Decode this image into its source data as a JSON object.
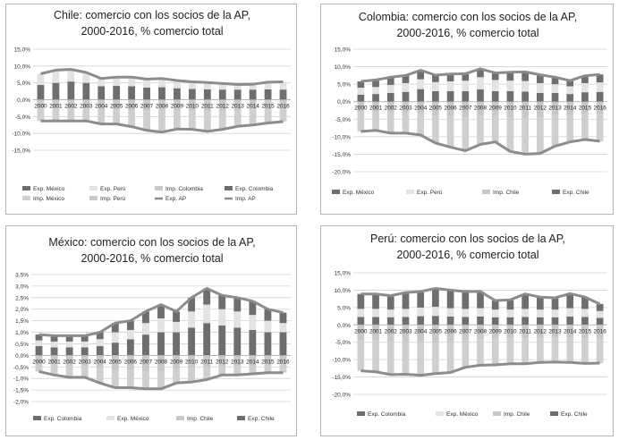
{
  "colors": {
    "exp_dark": "#6e6e6e",
    "exp_light": "#e3e3e3",
    "imp_mid": "#c8c8c8",
    "imp_light": "#cfcfcf",
    "line": "#8c8c8c",
    "grid": "#d2d2d2"
  },
  "chart_data": [
    {
      "type": "bar",
      "title": "Chile: comercio con los socios de la AP, 2000-2016, % comercio total",
      "categories": [
        "2000",
        "2001",
        "2002",
        "2003",
        "2004",
        "2005",
        "2006",
        "2007",
        "2008",
        "2009",
        "2010",
        "2011",
        "2012",
        "2013",
        "2014",
        "2015",
        "2016"
      ],
      "y_ticks": [
        "15,0%",
        "10,0%",
        "5,0%",
        "0,0%",
        "-5,0%",
        "-10,0%",
        "-15,0%"
      ],
      "ylim": [
        -15,
        15
      ],
      "legend": [
        "Exp. México",
        "Exp. Perú",
        "Imp. Colombia",
        "Exp. Colombia",
        "Imp. México",
        "Imp. Perú",
        "Exp. AP",
        "Imp. AP"
      ],
      "legend_placement": "bottom",
      "series_pos": [
        {
          "values": [
            4.4,
            5.0,
            5.4,
            5.0,
            4.0,
            4.1,
            4.0,
            3.6,
            3.7,
            3.4,
            3.2,
            3.1,
            3.0,
            3.0,
            3.0,
            3.1,
            3.0
          ]
        },
        {
          "values": [
            3.3,
            3.8,
            3.6,
            3.1,
            2.3,
            2.6,
            2.7,
            2.5,
            2.6,
            2.3,
            2.1,
            2.0,
            1.8,
            1.5,
            1.6,
            2.1,
            2.3
          ]
        }
      ],
      "series_neg": [
        {
          "values": [
            -2.4,
            -2.6,
            -2.5,
            -2.6,
            -2.9,
            -3.0,
            -3.2,
            -3.4,
            -3.5,
            -3.3,
            -3.4,
            -3.5,
            -3.3,
            -3.2,
            -3.0,
            -2.9,
            -2.8
          ]
        },
        {
          "values": [
            -3.9,
            -3.7,
            -3.8,
            -3.7,
            -4.3,
            -4.2,
            -4.8,
            -5.7,
            -6.1,
            -5.4,
            -5.4,
            -5.9,
            -5.5,
            -4.7,
            -4.5,
            -4.0,
            -3.7
          ]
        }
      ],
      "line_pos": [
        7.7,
        8.8,
        9.0,
        8.1,
        6.3,
        6.7,
        6.7,
        6.1,
        6.3,
        5.7,
        5.3,
        5.1,
        4.8,
        4.5,
        4.6,
        5.2,
        5.3
      ],
      "line_neg": [
        -6.3,
        -6.3,
        -6.3,
        -6.3,
        -7.2,
        -7.2,
        -8.0,
        -9.1,
        -9.6,
        -8.7,
        -8.8,
        -9.4,
        -8.8,
        -7.9,
        -7.5,
        -6.9,
        -6.5
      ]
    },
    {
      "type": "bar",
      "title": "Colombia: comercio con los socios de la AP, 2000-2016, % comercio total",
      "categories": [
        "2000",
        "2001",
        "2002",
        "2003",
        "2004",
        "2005",
        "2006",
        "2007",
        "2008",
        "2009",
        "2010",
        "2011",
        "2012",
        "2013",
        "2014",
        "2015",
        "2016"
      ],
      "y_ticks": [
        "15,0%",
        "10,0%",
        "5,0%",
        "0,0%",
        "-5,0%",
        "-10,0%",
        "-15,0%",
        "-20,0%"
      ],
      "ylim": [
        -20,
        15
      ],
      "legend": [
        "Exp. México",
        "Exp. Perú",
        "Imp. Chile",
        "Exp. Chile"
      ],
      "legend_placement": "bottom",
      "series_pos": [
        {
          "values": [
            2.0,
            2.2,
            2.5,
            2.8,
            3.6,
            3.0,
            3.0,
            3.0,
            3.5,
            3.0,
            3.0,
            2.9,
            2.5,
            2.5,
            2.2,
            2.7,
            2.8
          ]
        },
        {
          "values": [
            2.0,
            2.0,
            2.3,
            2.5,
            2.8,
            2.6,
            2.8,
            3.0,
            3.5,
            3.2,
            3.0,
            3.0,
            2.8,
            2.5,
            2.2,
            2.6,
            2.7
          ]
        },
        {
          "values": [
            1.8,
            2.0,
            2.2,
            2.2,
            2.6,
            2.0,
            2.1,
            2.0,
            2.4,
            2.0,
            2.4,
            2.6,
            2.4,
            2.0,
            1.6,
            2.1,
            2.3
          ]
        }
      ],
      "series_neg": [
        {
          "values": [
            -3.0,
            -3.0,
            -3.3,
            -3.3,
            -3.5,
            -4.0,
            -4.2,
            -4.5,
            -4.2,
            -4.0,
            -4.5,
            -4.8,
            -4.5,
            -4.0,
            -3.8,
            -3.6,
            -3.7
          ]
        },
        {
          "values": [
            -5.5,
            -5.2,
            -5.7,
            -5.7,
            -6.0,
            -7.8,
            -8.8,
            -9.5,
            -8.0,
            -7.5,
            -9.7,
            -10.2,
            -10.3,
            -8.7,
            -7.7,
            -7.2,
            -7.6
          ]
        }
      ],
      "line_pos": [
        5.8,
        6.2,
        7.0,
        7.5,
        9.0,
        7.6,
        7.9,
        8.0,
        9.4,
        8.2,
        8.4,
        8.5,
        7.7,
        7.0,
        6.0,
        7.4,
        7.8
      ],
      "line_neg": [
        -8.5,
        -8.2,
        -9.0,
        -9.0,
        -9.5,
        -11.8,
        -13.0,
        -14.0,
        -12.2,
        -11.5,
        -14.2,
        -15.0,
        -14.8,
        -12.7,
        -11.5,
        -10.8,
        -11.3
      ]
    },
    {
      "type": "bar",
      "title": "México: comercio con los socios de la AP, 2000-2016, % comercio total",
      "categories": [
        "2000",
        "2001",
        "2002",
        "2003",
        "2004",
        "2005",
        "2006",
        "2007",
        "2008",
        "2009",
        "2010",
        "2011",
        "2012",
        "2013",
        "2014",
        "2015",
        "2016"
      ],
      "y_ticks": [
        "3,5%",
        "3,0%",
        "2,5%",
        "2,0%",
        "1,5%",
        "1,0%",
        "0,5%",
        "0,0%",
        "-0,5%",
        "-1,0%",
        "-1,5%",
        "-2,0%"
      ],
      "ylim": [
        -2,
        3.5
      ],
      "legend": [
        "Exp. Colombia",
        "Exp. México",
        "Imp. Chile",
        "Exp. Chile"
      ],
      "legend_placement": "bottom",
      "series_pos": [
        {
          "values": [
            0.4,
            0.35,
            0.35,
            0.35,
            0.4,
            0.55,
            0.7,
            0.9,
            1.0,
            1.0,
            1.2,
            1.4,
            1.3,
            1.2,
            1.1,
            1.0,
            1.0
          ]
        },
        {
          "values": [
            0.25,
            0.25,
            0.25,
            0.25,
            0.3,
            0.45,
            0.4,
            0.5,
            0.6,
            0.45,
            0.7,
            0.8,
            0.7,
            0.7,
            0.65,
            0.5,
            0.4
          ]
        },
        {
          "values": [
            0.25,
            0.25,
            0.25,
            0.25,
            0.3,
            0.4,
            0.4,
            0.5,
            0.6,
            0.45,
            0.6,
            0.7,
            0.6,
            0.6,
            0.6,
            0.5,
            0.45
          ]
        }
      ],
      "series_neg": [
        {
          "values": [
            -0.35,
            -0.4,
            -0.45,
            -0.45,
            -0.55,
            -0.65,
            -0.65,
            -0.7,
            -0.7,
            -0.6,
            -0.55,
            -0.55,
            -0.45,
            -0.45,
            -0.45,
            -0.4,
            -0.4
          ]
        },
        {
          "values": [
            -0.35,
            -0.45,
            -0.5,
            -0.5,
            -0.65,
            -0.75,
            -0.75,
            -0.75,
            -0.75,
            -0.6,
            -0.6,
            -0.5,
            -0.4,
            -0.4,
            -0.35,
            -0.35,
            -0.35
          ]
        }
      ],
      "line_pos": [
        0.9,
        0.85,
        0.85,
        0.85,
        1.0,
        1.4,
        1.5,
        1.9,
        2.2,
        1.9,
        2.5,
        2.9,
        2.6,
        2.5,
        2.35,
        2.0,
        1.85
      ],
      "line_neg": [
        -0.7,
        -0.85,
        -0.95,
        -0.95,
        -1.2,
        -1.4,
        -1.4,
        -1.45,
        -1.45,
        -1.2,
        -1.15,
        -1.05,
        -0.85,
        -0.85,
        -0.8,
        -0.75,
        -0.75
      ]
    },
    {
      "type": "bar",
      "title": "Perú: comercio con los socios de la AP, 2000-2016, % comercio total",
      "categories": [
        "2000",
        "2001",
        "2002",
        "2003",
        "2004",
        "2005",
        "2006",
        "2007",
        "2008",
        "2009",
        "2010",
        "2011",
        "2012",
        "2013",
        "2014",
        "2015",
        "2016"
      ],
      "y_ticks": [
        "15,0%",
        "10,0%",
        "5,0%",
        "0,0%",
        "-5,0%",
        "-10,0%",
        "-15,0%",
        "-20,0%"
      ],
      "ylim": [
        -20,
        15
      ],
      "legend": [
        "Exp. Colombia",
        "Exp. México",
        "Imp. Chile",
        "Exp. Chile"
      ],
      "legend_placement": "bottom",
      "series_pos": [
        {
          "values": [
            2.3,
            2.3,
            2.2,
            2.3,
            2.5,
            2.6,
            2.4,
            2.3,
            2.4,
            2.2,
            2.2,
            2.3,
            2.2,
            2.2,
            2.4,
            2.3,
            2.0
          ]
        },
        {
          "values": [
            2.3,
            2.3,
            2.2,
            2.3,
            2.5,
            2.6,
            2.4,
            2.3,
            2.4,
            2.2,
            2.2,
            2.3,
            2.2,
            2.2,
            2.4,
            2.3,
            2.0
          ]
        },
        {
          "values": [
            4.3,
            4.3,
            4.0,
            4.7,
            4.6,
            5.3,
            5.2,
            5.0,
            4.8,
            2.6,
            2.8,
            4.3,
            3.6,
            3.4,
            4.2,
            3.4,
            2.0
          ]
        }
      ],
      "series_neg": [
        {
          "values": [
            -4.5,
            -4.5,
            -4.8,
            -5.0,
            -4.8,
            -5.0,
            -4.8,
            -4.5,
            -4.0,
            -4.0,
            -3.8,
            -3.8,
            -3.7,
            -3.7,
            -3.6,
            -3.8,
            -3.8
          ]
        },
        {
          "values": [
            -8.7,
            -9.0,
            -9.5,
            -9.2,
            -9.7,
            -9.0,
            -8.9,
            -7.7,
            -7.6,
            -7.5,
            -7.4,
            -7.4,
            -7.1,
            -7.0,
            -7.2,
            -7.3,
            -7.2
          ]
        }
      ],
      "line_pos": [
        8.9,
        8.9,
        8.4,
        9.3,
        9.6,
        10.5,
        10.0,
        9.6,
        9.6,
        7.0,
        7.2,
        8.9,
        8.0,
        7.8,
        9.0,
        8.0,
        6.0
      ],
      "line_neg": [
        -13.2,
        -13.5,
        -14.3,
        -14.2,
        -14.5,
        -14.0,
        -13.7,
        -12.2,
        -11.6,
        -11.5,
        -11.2,
        -11.2,
        -10.8,
        -10.7,
        -10.8,
        -11.1,
        -11.0
      ]
    }
  ]
}
